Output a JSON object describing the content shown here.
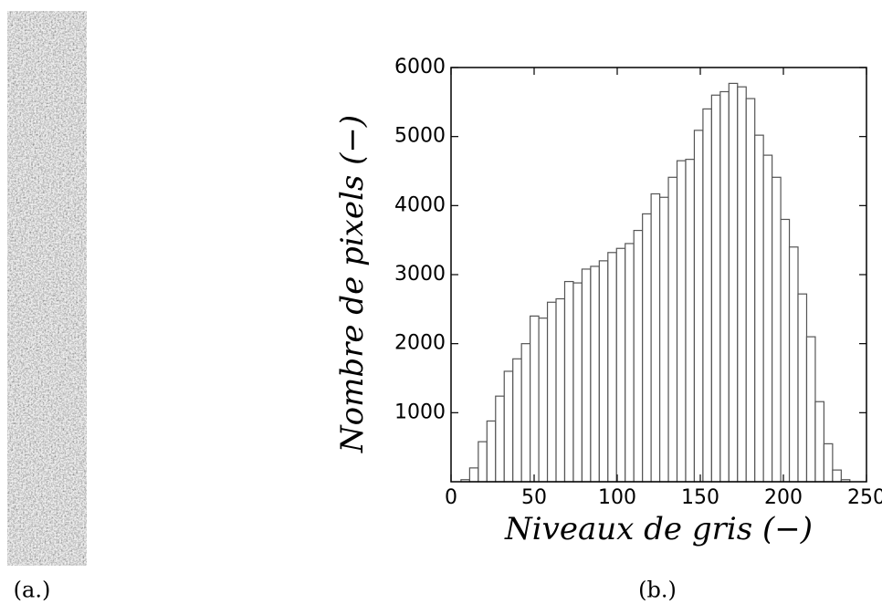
{
  "chart_data": {
    "type": "histogram",
    "ylabel": "Nombre de pixels (−)",
    "xlabel": "Niveaux de gris (−)",
    "bins": [
      6,
      11.2,
      16.4,
      21.6,
      26.8,
      32,
      37.2,
      42.4,
      47.6,
      52.8,
      58,
      63.2,
      68.4,
      73.6,
      78.8,
      84,
      89.2,
      94.4,
      99.6,
      104.8,
      110,
      115.2,
      120.4,
      125.6,
      130.8,
      136,
      141.2,
      146.4,
      151.6,
      156.8,
      162,
      167.2,
      172.4,
      177.6,
      182.8,
      188,
      193.2,
      198.4,
      203.6,
      208.8,
      214,
      219.2,
      224.4,
      229.6,
      234.8,
      240
    ],
    "values": [
      30,
      200,
      580,
      880,
      1240,
      1600,
      1780,
      2000,
      2400,
      2370,
      2600,
      2650,
      2900,
      2880,
      3080,
      3120,
      3200,
      3320,
      3380,
      3450,
      3640,
      3880,
      4170,
      4120,
      4410,
      4650,
      4670,
      5090,
      5400,
      5600,
      5650,
      5770,
      5720,
      5550,
      5020,
      4730,
      4410,
      3800,
      3400,
      2720,
      2100,
      1160,
      550,
      170,
      30
    ],
    "color": "#ffffff",
    "edgecolor": "#555555",
    "xlim": [
      0,
      250
    ],
    "ylim": [
      0,
      6000
    ],
    "xticks": [
      0,
      50,
      100,
      150,
      200,
      250
    ],
    "yticks": [
      1000,
      2000,
      3000,
      4000,
      5000,
      6000
    ]
  },
  "captions": [
    "(a.)",
    "(b.)"
  ]
}
